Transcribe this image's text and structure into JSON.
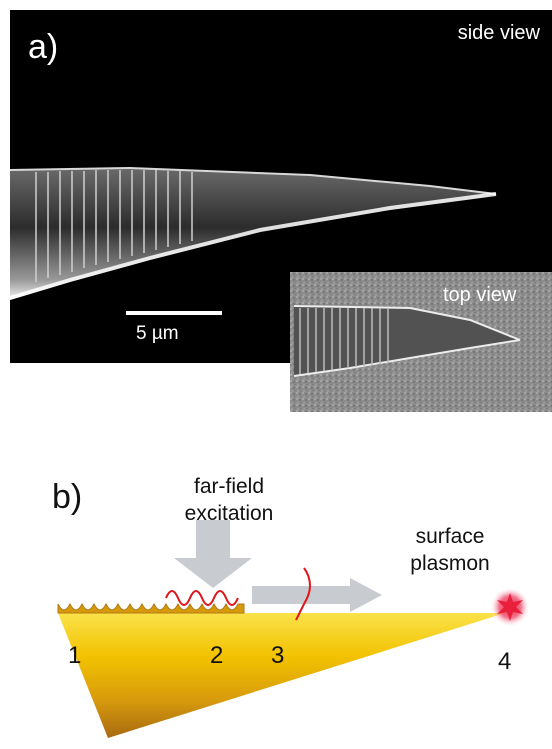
{
  "figure": {
    "panel_a": {
      "label": "a)",
      "side_view_label": "side view",
      "scale_bar_label": "5 µm",
      "inset": {
        "label": "top view"
      }
    },
    "panel_b": {
      "label": "b)",
      "excitation_label": "far-field\nexcitation",
      "plasmon_label": "surface\nplasmon",
      "position_labels": [
        "1",
        "2",
        "3",
        "4"
      ]
    }
  },
  "colors": {
    "panel_background": "#000000",
    "tip_gold": "#f2c200",
    "tip_gold_dark": "#a86a10",
    "arrow_gray": "#c8ccd0",
    "wave_red": "#e0141a",
    "emission_red": "#e8203c"
  }
}
